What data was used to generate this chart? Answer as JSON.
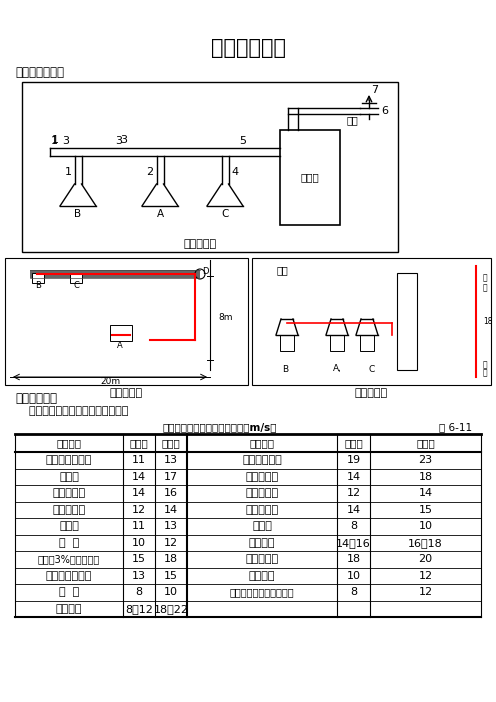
{
  "title": "管道阻力计算",
  "section1": "一、管道示意图",
  "section2": "二、流速选择",
  "section2_text": "    除尘管道内最低空气流速的确定：",
  "table_title": "除尘通风管道内最低空气流速（m/s）",
  "table_ref": "表 6-11",
  "rows": [
    [
      "粉状的粘土和砂",
      "11",
      "13",
      "磨和制（湿）",
      "19",
      "23"
    ],
    [
      "粗大混",
      "14",
      "17",
      "灰土、砂金",
      "14",
      "18"
    ],
    [
      "重矿物粉尘",
      "14",
      "16",
      "锻圆、刨屑",
      "12",
      "14"
    ],
    [
      "轻矿物粉尘",
      "12",
      "14",
      "大块干木屑",
      "14",
      "15"
    ],
    [
      "干塑砂",
      "11",
      "13",
      "干微尘",
      "8",
      "10"
    ],
    [
      "煤  灰",
      "10",
      "12",
      "磨碎粉尘",
      "14～16",
      "16～18"
    ],
    [
      "湿土（3%以下水分）",
      "15",
      "18",
      "大块湿木屑",
      "18",
      "20"
    ],
    [
      "软树脂（生末）",
      "13",
      "15",
      "谷物粉尘",
      "10",
      "12"
    ],
    [
      "橡  皮",
      "8",
      "10",
      "棉（植纤维粉尘、杂质）",
      "8",
      "12"
    ],
    [
      "水泥粉尘",
      "8～12",
      "18～22",
      "",
      "",
      ""
    ]
  ],
  "background_color": "#ffffff"
}
